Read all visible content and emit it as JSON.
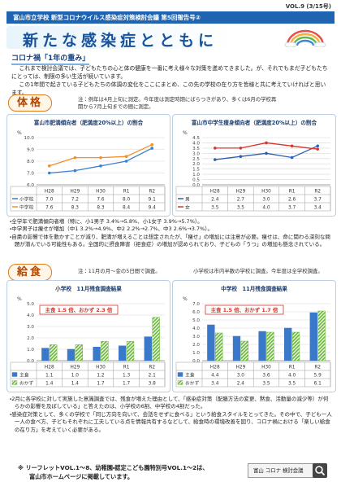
{
  "header": {
    "vol": "VOL.9 (3/15号)",
    "banner": "富山市立学校 新型コロナウイルス感染症対策検討会議 第5回報告号②",
    "title": "新たな感染症とともに"
  },
  "intro": {
    "heading": "コロナ禍「1年の重み」",
    "paragraphs": [
      "これまで検討会議では、子どもたちの心と体の健康を一番に考え様々な対策を進めてきました。が、それでもまだ子どもたちにとっては、制限の多い生活が続いています。",
      "この1年間で起きている子どもたちの体調の変化をここにまとめ、この先の学校の在り方を皆様と共に考えていければと思います。"
    ]
  },
  "physique": {
    "heading": "体格",
    "note": "注：例年は4月上旬に測定。今年度は測定時期にばらつきがあり、多くは6月の学校再開から7月上旬までの間に測定。",
    "charts": [
      {
        "type": "line",
        "title": "富山市肥満傾向者（肥満度20%以上）の割合",
        "unit": "%",
        "categories": [
          "H28",
          "H29",
          "H30",
          "R1",
          "R2"
        ],
        "series": [
          {
            "name": "小学校",
            "color": "#3b7fd0",
            "values": [
              7.0,
              7.2,
              7.6,
              8.0,
              9.1
            ],
            "value_labels": [
              "7.0",
              "7.2",
              "7.6",
              "8.0",
              "9.1"
            ]
          },
          {
            "name": "中学校",
            "color": "#f0902a",
            "values": [
              7.6,
              8.3,
              8.3,
              8.4,
              9.4
            ],
            "value_labels": [
              "7.6",
              "8.3",
              "8.3",
              "8.4",
              "9.4"
            ]
          }
        ],
        "ylim": [
          6,
          10
        ],
        "yticks": [
          {
            "value": 6,
            "label": "6.0"
          },
          {
            "value": 7,
            "label": "7.0"
          },
          {
            "value": 8,
            "label": "8.0"
          },
          {
            "value": 9,
            "label": "9.0"
          },
          {
            "value": 10,
            "label": "10.0"
          }
        ],
        "grid": true
      },
      {
        "type": "line",
        "title": "富山市中学生痩身傾向者（肥満度20%以上）の割合",
        "unit": "%",
        "categories": [
          "H28",
          "H29",
          "H30",
          "R1",
          "R2"
        ],
        "series": [
          {
            "name": "男",
            "color": "#2f5fb3",
            "values": [
              2.4,
              2.7,
              3.0,
              2.6,
              3.7
            ],
            "value_labels": [
              "2.4",
              "2.7",
              "3.0",
              "2.6",
              "3.7"
            ]
          },
          {
            "name": "女",
            "color": "#d9342b",
            "values": [
              3.5,
              3.5,
              4.0,
              3.7,
              3.4
            ],
            "value_labels": [
              "3.5",
              "3.5",
              "4.0",
              "3.7",
              "3.4"
            ]
          }
        ],
        "ylim": [
          0,
          4.5
        ],
        "yticks": [
          {
            "value": 0,
            "label": "0.0"
          },
          0.5,
          {
            "value": 1,
            "label": "1.0"
          },
          1.5,
          {
            "value": 2,
            "label": "2.0"
          },
          2.5,
          {
            "value": 3,
            "label": "3.0"
          },
          3.5,
          {
            "value": 4,
            "label": "4.0"
          },
          4.5
        ],
        "grid": true
      }
    ],
    "bullets": [
      "・全学年で肥満傾向者増（特に、小1男子 3.4%→5.8%、小1女子 3.9%→5.7%）。",
      "・中学男子は痩せが増加（中1 3.2%→4.9%、中2 2.2%→2.7%、中3 2.6%→3.7%）。",
      "・自粛の影響で体を動かすことが減り、肥満が増えることは想定されたが、「痩せ」の増加には注意が必要。痩せは、命に関わる深刻な問題が潜んでいる可能性もある。全国的に摂食障害（拒食症）の増加が認められており、子どもの「うつ」の増加も懸念されている。"
    ]
  },
  "lunch": {
    "heading": "給食",
    "note": "注：11月の月～金の5日間で調査。",
    "note2": "小学校は市内半数の学校に調査。今年度は全学校調査。",
    "charts": [
      {
        "type": "bar",
        "title": "小学校　11月残食調査結果",
        "unit": "%",
        "annotation": "主食 1.5 倍、おかず 2.3 倍",
        "categories": [
          "H28",
          "H29",
          "H30",
          "R1",
          "R2"
        ],
        "series": [
          {
            "name": "主食",
            "color": "#3a78c9",
            "values": [
              1.1,
              1.0,
              1.2,
              1.3,
              2.1
            ],
            "value_labels": [
              "1.1",
              "1.0",
              "1.2",
              "1.3",
              "2.1"
            ]
          },
          {
            "name": "おかず",
            "color": "#6dbb3a",
            "values": [
              1.4,
              1.4,
              1.7,
              1.7,
              3.8
            ],
            "value_labels": [
              "1.4",
              "1.4",
              "1.7",
              "1.7",
              "3.8"
            ]
          }
        ],
        "ylim": [
          0,
          5
        ],
        "yticks": [
          {
            "value": 0,
            "label": "0.0"
          },
          {
            "value": 1,
            "label": "1.0"
          },
          {
            "value": 2,
            "label": "2.0"
          },
          {
            "value": 3,
            "label": "3.0"
          },
          {
            "value": 4,
            "label": "4.0"
          },
          {
            "value": 5,
            "label": "5.0"
          }
        ],
        "grid": true
      },
      {
        "type": "bar",
        "title": "中学校　11月残食調査結果",
        "unit": "%",
        "annotation": "主食 1.5 倍、おかず 1.7 倍",
        "categories": [
          "H28",
          "H29",
          "H30",
          "R1",
          "R2"
        ],
        "series": [
          {
            "name": "主食",
            "color": "#3a78c9",
            "values": [
              4.4,
              3.0,
              3.6,
              4.0,
              5.9
            ],
            "value_labels": [
              "4.4",
              "3.0",
              "3.6",
              "4.0",
              "5.9"
            ]
          },
          {
            "name": "おかず",
            "color": "#6dbb3a",
            "values": [
              3.4,
              2.4,
              3.5,
              3.5,
              6.1
            ],
            "value_labels": [
              "3.4",
              "2.4",
              "3.5",
              "3.5",
              "6.1"
            ]
          }
        ],
        "ylim": [
          0,
          7
        ],
        "yticks": [
          {
            "value": 0,
            "label": "0.0"
          },
          {
            "value": 1,
            "label": "1.0"
          },
          {
            "value": 2,
            "label": "2.0"
          },
          {
            "value": 3,
            "label": "3.0"
          },
          {
            "value": 4,
            "label": "4.0"
          },
          {
            "value": 5,
            "label": "5.0"
          },
          {
            "value": 6,
            "label": "6.0"
          },
          {
            "value": 7,
            "label": "7.0"
          }
        ],
        "grid": true
      }
    ],
    "bullets": [
      "・2月に各学校に対して実施した意識調査では、残食が増えた理由として、「感染症対策（配膳方法の変更、黙食、活動量の減少等）が何らかの影響を及ぼしている」と答えたのは、小学校の6割、中学校の4割だった。",
      "・感染症対策として、多くの学校で「同じ方向を向いて、会話をせずに食べる」という給食スタイルをとってきた。その中で、子ども一人一人の食べ方、子どもそれぞれに工夫している点を情報共有するなどして、給食時の環境改善を図り、コロナ禍における「楽しい給食の在り方」を考えていく必要がある。"
    ]
  },
  "footer": {
    "lines": [
      "※ リーフレットVOL.1～8、幼稚園・認定こども園特別号VOL.1～2は、",
      "富山市ホームページに掲載しています。"
    ],
    "search": "富山 コロナ 検討会議"
  }
}
